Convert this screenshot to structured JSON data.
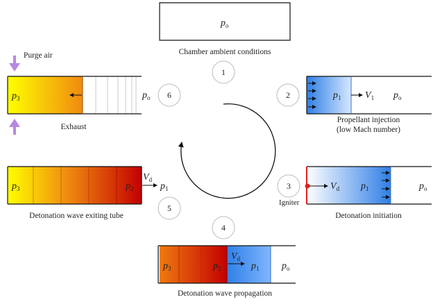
{
  "stages": [
    {
      "number": "1",
      "caption": "Chamber ambient conditions"
    },
    {
      "number": "2",
      "caption_line1": "Propellant injection",
      "caption_line2": "(low Mach number)"
    },
    {
      "number": "3",
      "caption": "Detonation initiation"
    },
    {
      "number": "4",
      "caption": "Detonation wave propagation"
    },
    {
      "number": "5",
      "caption": "Detonation wave exiting tube"
    },
    {
      "number": "6",
      "caption": "Exhaust"
    }
  ],
  "labels": {
    "purge_air": "Purge air",
    "igniter": "Igniter"
  },
  "symbols": {
    "p": "p",
    "V": "V",
    "o": "o",
    "one": "1",
    "two": "2",
    "three": "3",
    "d": "d"
  },
  "colors": {
    "blue_light": "#ffffff",
    "blue_dark": "#2f7fe6",
    "red_dark": "#c40000",
    "orange": "#f07a10",
    "yellow": "#ffff00",
    "purple_arrow": "#b888e0",
    "igniter_dot": "#e02020"
  }
}
